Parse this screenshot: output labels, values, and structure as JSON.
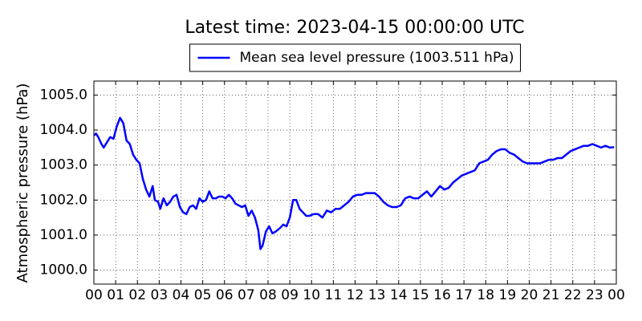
{
  "chart_data": {
    "type": "line",
    "title": "Latest time: 2023-04-15 00:00:00 UTC",
    "y_label": "Atmospheric pressure (hPa)",
    "legend": "upper center",
    "grid": true,
    "xlim": [
      0,
      24
    ],
    "ylim": [
      999.6,
      1005.4
    ],
    "xticks": [
      {
        "value": 0,
        "label": "00"
      },
      {
        "value": 1,
        "label": "01"
      },
      {
        "value": 2,
        "label": "02"
      },
      {
        "value": 3,
        "label": "03"
      },
      {
        "value": 4,
        "label": "04"
      },
      {
        "value": 5,
        "label": "05"
      },
      {
        "value": 6,
        "label": "06"
      },
      {
        "value": 7,
        "label": "07"
      },
      {
        "value": 8,
        "label": "08"
      },
      {
        "value": 9,
        "label": "09"
      },
      {
        "value": 10,
        "label": "10"
      },
      {
        "value": 11,
        "label": "11"
      },
      {
        "value": 12,
        "label": "12"
      },
      {
        "value": 13,
        "label": "13"
      },
      {
        "value": 14,
        "label": "14"
      },
      {
        "value": 15,
        "label": "15"
      },
      {
        "value": 16,
        "label": "16"
      },
      {
        "value": 17,
        "label": "17"
      },
      {
        "value": 18,
        "label": "18"
      },
      {
        "value": 19,
        "label": "19"
      },
      {
        "value": 20,
        "label": "20"
      },
      {
        "value": 21,
        "label": "21"
      },
      {
        "value": 22,
        "label": "22"
      },
      {
        "value": 23,
        "label": "23"
      },
      {
        "value": 24,
        "label": "00"
      }
    ],
    "yticks": [
      {
        "value": 1000,
        "label": "1000.0"
      },
      {
        "value": 1001,
        "label": "1001.0"
      },
      {
        "value": 1002,
        "label": "1002.0"
      },
      {
        "value": 1003,
        "label": "1003.0"
      },
      {
        "value": 1004,
        "label": "1004.0"
      },
      {
        "value": 1005,
        "label": "1005.0"
      }
    ],
    "x": [
      0.0,
      0.1,
      0.2,
      0.35,
      0.45,
      0.6,
      0.75,
      0.9,
      1.05,
      1.2,
      1.35,
      1.5,
      1.65,
      1.8,
      1.95,
      2.1,
      2.25,
      2.4,
      2.55,
      2.7,
      2.8,
      2.95,
      3.05,
      3.2,
      3.35,
      3.5,
      3.65,
      3.8,
      3.95,
      4.1,
      4.25,
      4.4,
      4.55,
      4.7,
      4.85,
      5.0,
      5.15,
      5.3,
      5.45,
      5.6,
      5.75,
      5.9,
      6.05,
      6.2,
      6.35,
      6.5,
      6.65,
      6.8,
      6.95,
      7.1,
      7.25,
      7.4,
      7.55,
      7.65,
      7.75,
      7.9,
      8.05,
      8.2,
      8.35,
      8.55,
      8.7,
      8.85,
      9.0,
      9.15,
      9.3,
      9.45,
      9.6,
      9.75,
      9.9,
      10.1,
      10.3,
      10.5,
      10.7,
      10.9,
      11.1,
      11.3,
      11.5,
      11.7,
      11.9,
      12.1,
      12.3,
      12.5,
      12.7,
      12.9,
      13.1,
      13.3,
      13.5,
      13.7,
      13.9,
      14.1,
      14.3,
      14.5,
      14.7,
      14.9,
      15.1,
      15.3,
      15.5,
      15.7,
      15.9,
      16.1,
      16.3,
      16.5,
      16.7,
      16.9,
      17.1,
      17.3,
      17.5,
      17.7,
      17.9,
      18.1,
      18.3,
      18.5,
      18.7,
      18.9,
      19.1,
      19.3,
      19.5,
      19.7,
      19.9,
      20.1,
      20.3,
      20.5,
      20.7,
      20.9,
      21.1,
      21.3,
      21.5,
      21.7,
      21.9,
      22.1,
      22.3,
      22.5,
      22.7,
      22.9,
      23.1,
      23.3,
      23.5,
      23.7,
      23.9
    ],
    "series": [
      {
        "name": "Mean sea level pressure (1003.511 hPa)",
        "color": "#0000ff",
        "values": [
          1003.85,
          1003.9,
          1003.8,
          1003.6,
          1003.5,
          1003.65,
          1003.8,
          1003.75,
          1004.1,
          1004.35,
          1004.2,
          1003.7,
          1003.6,
          1003.3,
          1003.15,
          1003.05,
          1002.6,
          1002.3,
          1002.1,
          1002.4,
          1002.0,
          1001.95,
          1001.75,
          1002.05,
          1001.85,
          1001.95,
          1002.1,
          1002.15,
          1001.8,
          1001.65,
          1001.6,
          1001.8,
          1001.85,
          1001.75,
          1002.05,
          1001.95,
          1002.0,
          1002.25,
          1002.05,
          1002.05,
          1002.1,
          1002.1,
          1002.05,
          1002.15,
          1002.05,
          1001.9,
          1001.85,
          1001.8,
          1001.85,
          1001.55,
          1001.7,
          1001.5,
          1001.15,
          1000.6,
          1000.7,
          1001.1,
          1001.25,
          1001.05,
          1001.1,
          1001.2,
          1001.3,
          1001.25,
          1001.5,
          1002.0,
          1002.0,
          1001.75,
          1001.65,
          1001.55,
          1001.55,
          1001.6,
          1001.6,
          1001.5,
          1001.7,
          1001.65,
          1001.75,
          1001.75,
          1001.85,
          1001.95,
          1002.1,
          1002.15,
          1002.15,
          1002.2,
          1002.2,
          1002.2,
          1002.1,
          1001.95,
          1001.85,
          1001.8,
          1001.8,
          1001.85,
          1002.05,
          1002.1,
          1002.05,
          1002.05,
          1002.15,
          1002.25,
          1002.1,
          1002.25,
          1002.4,
          1002.3,
          1002.35,
          1002.5,
          1002.6,
          1002.7,
          1002.75,
          1002.8,
          1002.85,
          1003.05,
          1003.1,
          1003.15,
          1003.3,
          1003.4,
          1003.45,
          1003.45,
          1003.35,
          1003.3,
          1003.2,
          1003.1,
          1003.05,
          1003.05,
          1003.05,
          1003.05,
          1003.1,
          1003.15,
          1003.15,
          1003.2,
          1003.2,
          1003.3,
          1003.4,
          1003.45,
          1003.5,
          1003.55,
          1003.55,
          1003.6,
          1003.55,
          1003.5,
          1003.55,
          1003.5,
          1003.51
        ]
      }
    ]
  }
}
